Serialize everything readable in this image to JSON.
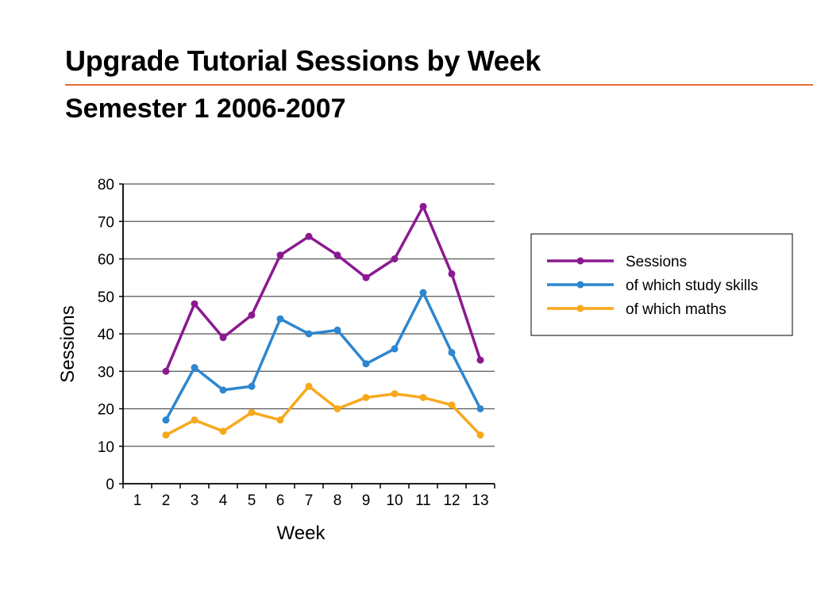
{
  "slide": {
    "title": "Upgrade Tutorial Sessions by Week",
    "subtitle": "Semester 1 2006-2007"
  },
  "chart_data": {
    "type": "line",
    "xlabel": "Week",
    "ylabel": "Sessions",
    "categories": [
      "1",
      "2",
      "3",
      "4",
      "5",
      "6",
      "7",
      "8",
      "9",
      "10",
      "11",
      "12",
      "13"
    ],
    "ylim": [
      0,
      80
    ],
    "yticks": [
      "0",
      "10",
      "20",
      "30",
      "40",
      "50",
      "60",
      "70",
      "80"
    ],
    "grid": true,
    "legend_position": "right",
    "series": [
      {
        "name": "Sessions",
        "color": "#8b1a91",
        "values": [
          null,
          30,
          48,
          39,
          45,
          61,
          66,
          61,
          55,
          60,
          74,
          56,
          33
        ]
      },
      {
        "name": "of which study skills",
        "color": "#2d86cf",
        "values": [
          null,
          17,
          31,
          25,
          26,
          44,
          40,
          41,
          32,
          36,
          51,
          35,
          20
        ]
      },
      {
        "name": "of which maths",
        "color": "#f7a81b",
        "values": [
          null,
          13,
          17,
          14,
          19,
          17,
          26,
          20,
          23,
          24,
          23,
          21,
          13
        ]
      }
    ]
  }
}
